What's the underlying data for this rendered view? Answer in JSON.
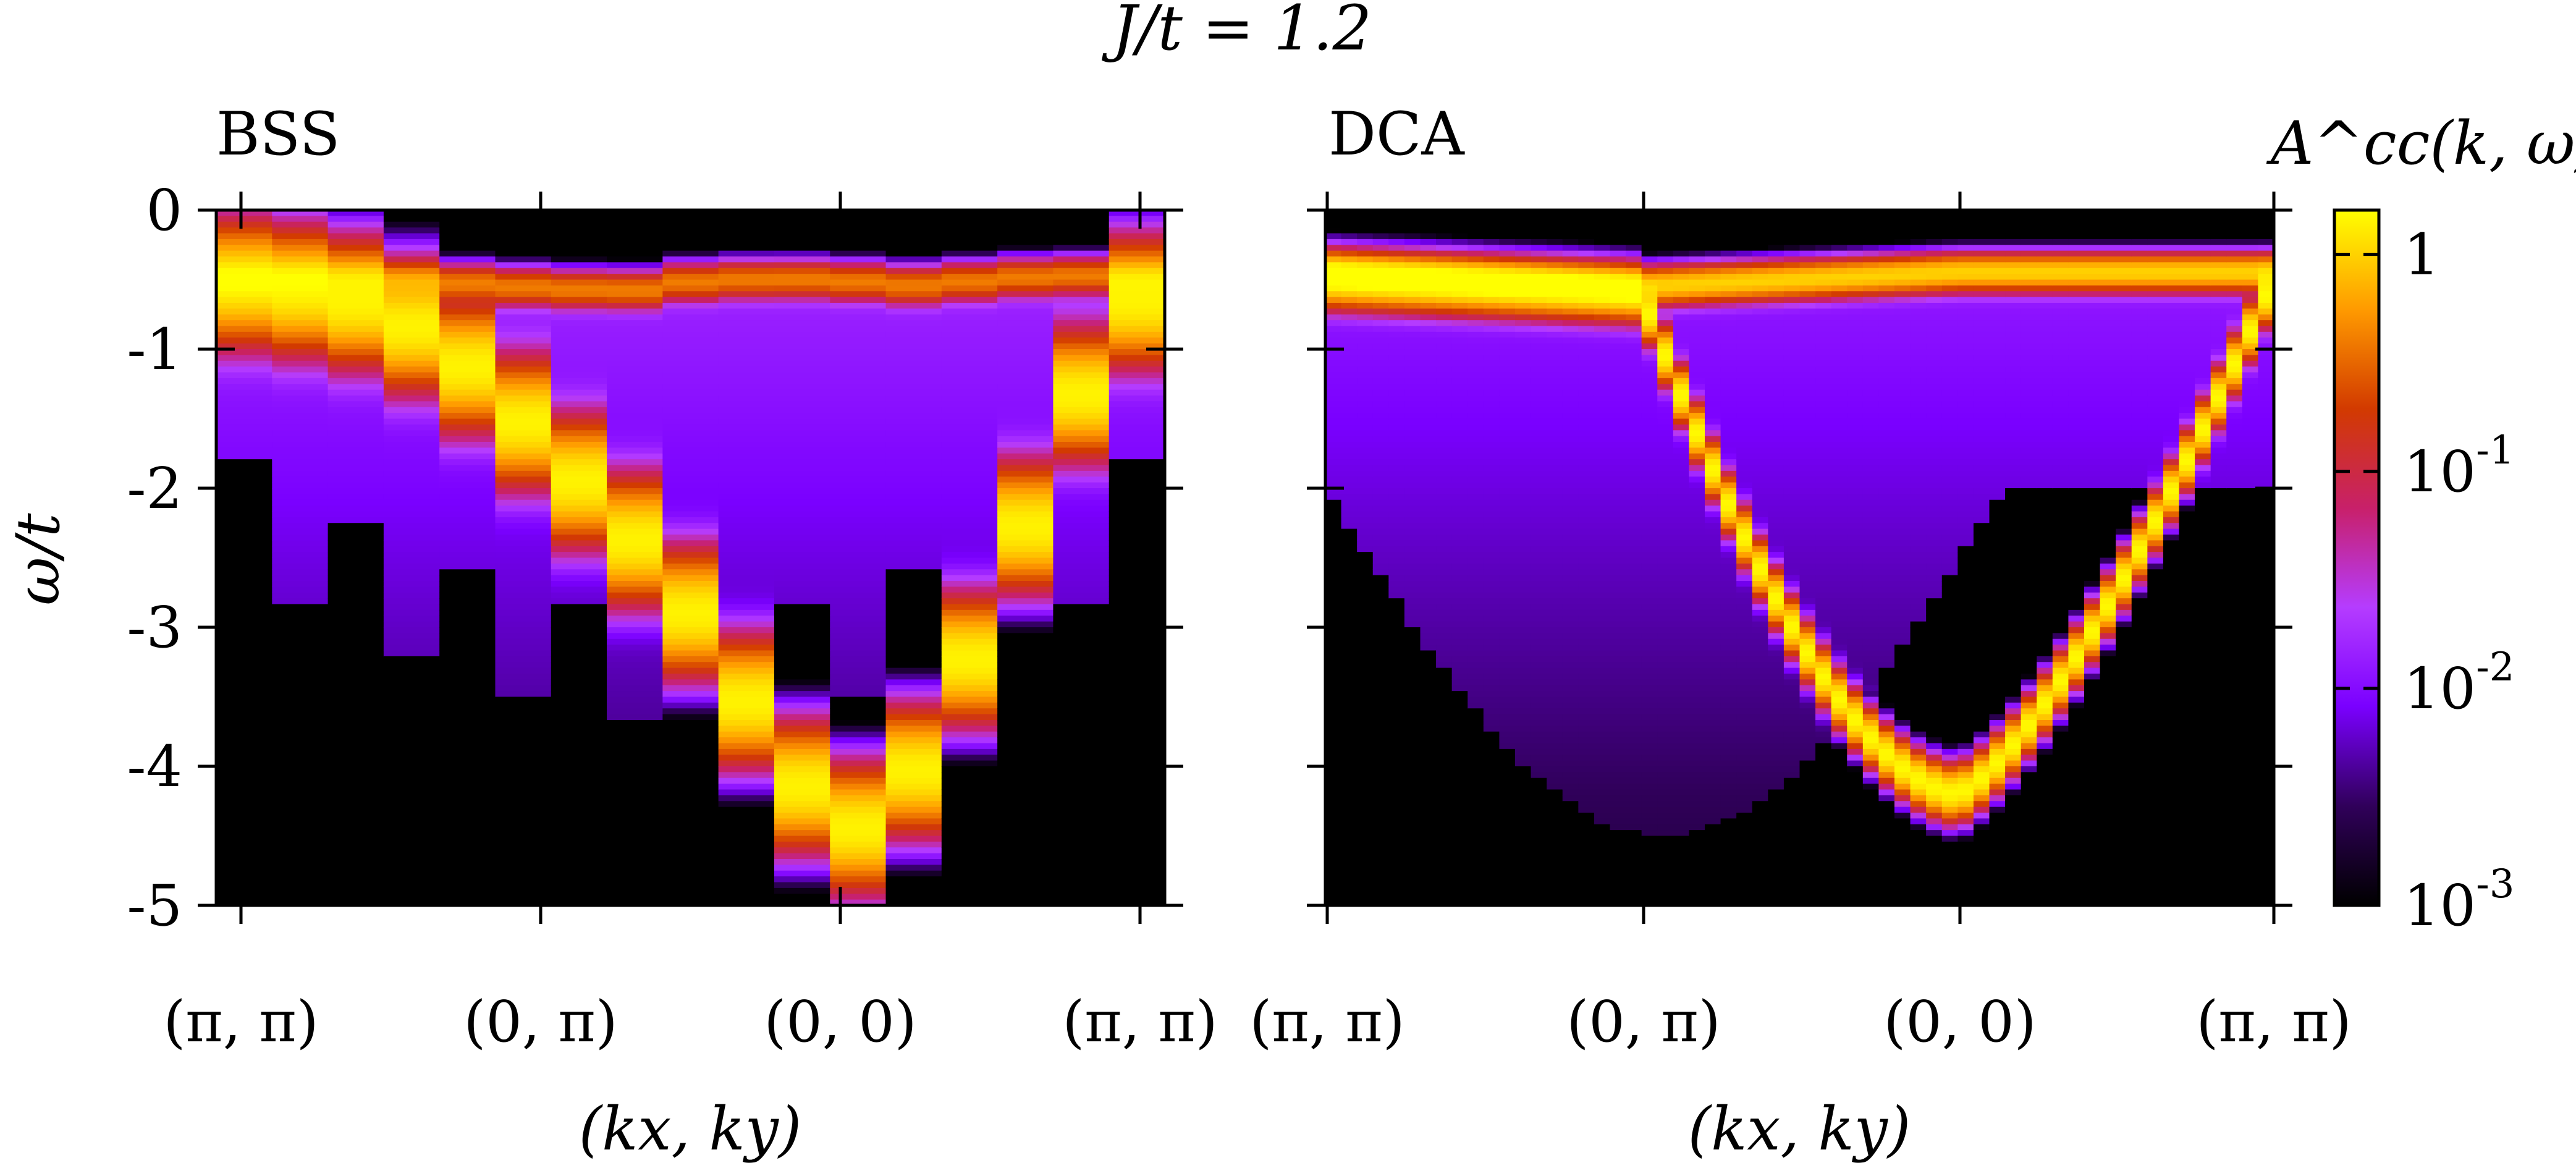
{
  "figure": {
    "title": "J/t = 1.2",
    "colorbar": {
      "label": "A^cc(k, ω)",
      "scale": "log",
      "range": [
        0.001,
        1.6
      ],
      "ticks": [
        {
          "value": 1,
          "label": "1"
        },
        {
          "value": 0.1,
          "label": "10^-1"
        },
        {
          "value": 0.01,
          "label": "10^-2"
        },
        {
          "value": 0.001,
          "label": "10^-3"
        }
      ],
      "colormap": [
        "#000000",
        "#30005a",
        "#7a00ff",
        "#b53cff",
        "#c8206a",
        "#d23a00",
        "#ff9a00",
        "#ffff00"
      ]
    }
  },
  "chart_data": [
    {
      "type": "heatmap",
      "title": "BSS",
      "xlabel": "(kx, ky)",
      "ylabel": "ω/t",
      "x_ticks": [
        "(π, π)",
        "(0, π)",
        "(0, 0)",
        "(π, π)"
      ],
      "y_ticks": [
        "0",
        "-1",
        "-2",
        "-3",
        "-4",
        "-5"
      ],
      "ylim": [
        -5,
        0
      ],
      "k_points": 17,
      "bands": [
        {
          "name": "flat band",
          "omega": [
            -0.5,
            -0.48,
            -0.48,
            -0.5,
            -0.52,
            -0.55,
            -0.57,
            -0.58,
            -0.52,
            -0.5,
            -0.5,
            -0.52,
            -0.55,
            -0.5,
            -0.48,
            -0.47,
            -0.5
          ],
          "peak": 0.4
        },
        {
          "name": "dispersive band",
          "path_omega": [
            -0.5,
            -0.55,
            -0.6,
            -0.7,
            -0.9,
            -1.2,
            -1.6,
            -2.0,
            -2.4,
            -2.9,
            -3.5,
            -4.1,
            -4.5,
            -4.2,
            -3.5,
            -2.6,
            -1.7,
            -0.8,
            -0.5
          ],
          "peak": 1.4
        }
      ]
    },
    {
      "type": "heatmap",
      "title": "DCA",
      "xlabel": "(kx, ky)",
      "ylabel": "",
      "x_ticks": [
        "(π, π)",
        "(0, π)",
        "(0, 0)",
        "(π, π)"
      ],
      "y_ticks": [
        "0",
        "-1",
        "-2",
        "-3",
        "-4",
        "-5"
      ],
      "ylim": [
        -5,
        0
      ],
      "k_points": 60,
      "bands": [
        {
          "name": "flat band",
          "omega_at_ticks": [
            -0.45,
            -0.55,
            -0.45,
            -0.45
          ],
          "peak": 1.0
        },
        {
          "name": "dispersive band",
          "omega_at_ticks": [
            -0.5,
            -0.6,
            -4.2,
            -0.5
          ],
          "peak": 1.5
        }
      ]
    }
  ]
}
